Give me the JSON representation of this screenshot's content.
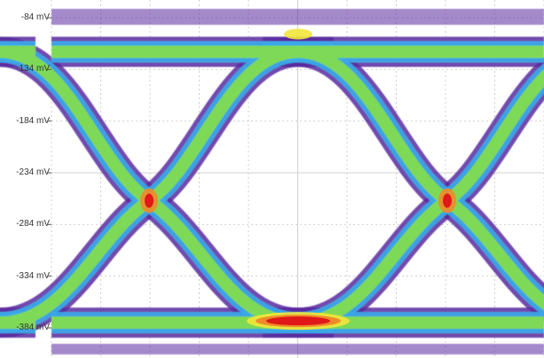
{
  "chart_data": {
    "type": "heatmap",
    "title": "",
    "xlabel": "",
    "ylabel": "",
    "y_unit": "mV",
    "y_ticks": [
      {
        "value": -84,
        "label": "-84 mV"
      },
      {
        "value": -134,
        "label": "-134 mV"
      },
      {
        "value": -184,
        "label": "-184 mV"
      },
      {
        "value": -234,
        "label": "-234 mV"
      },
      {
        "value": -284,
        "label": "-284 mV"
      },
      {
        "value": -334,
        "label": "-334 mV"
      },
      {
        "value": -384,
        "label": "-384 mV"
      }
    ],
    "ylim": [
      -84,
      -396
    ],
    "grid": true,
    "levels": {
      "high_mV": -117,
      "low_mV": -379,
      "crossing_mV": -261
    },
    "crossing_count": 2,
    "colormap": [
      "#5a2aa0",
      "#3aa8e8",
      "#7ed957",
      "#f2e63a",
      "#f08a2a",
      "#e01818"
    ]
  }
}
